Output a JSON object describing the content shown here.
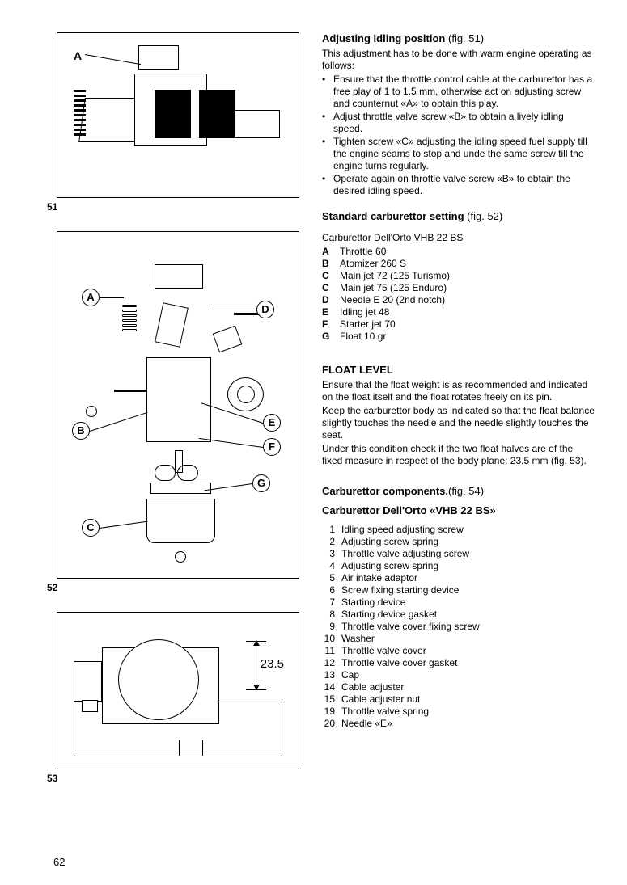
{
  "page_number": "62",
  "figures": {
    "f51": {
      "num": "51",
      "label_A": "A"
    },
    "f52": {
      "num": "52",
      "circles": {
        "A": "A",
        "B": "B",
        "C": "C",
        "D": "D",
        "E": "E",
        "F": "F",
        "G": "G"
      }
    },
    "f53": {
      "num": "53",
      "dimension": "23.5"
    }
  },
  "sections": {
    "s1": {
      "heading": "Adjusting idling position",
      "fig_ref": "(fig. 51)",
      "intro": "This adjustment has to be done with warm engine operating as follows:",
      "bullets": [
        "Ensure that the throttle control cable at the carburettor has a free play of 1 to 1.5 mm, otherwise act on adjusting screw and counternut «A» to obtain this play.",
        "Adjust throttle valve screw «B» to obtain a lively idling speed.",
        "Tighten screw «C» adjusting the idling speed fuel supply till the engine seams to stop and unde the same screw till the engine turns regularly.",
        "Operate again on throttle valve screw «B» to obtain the desired idling speed."
      ]
    },
    "s2": {
      "heading": "Standard carburettor setting",
      "fig_ref": "(fig. 52)",
      "subtitle": "Carburettor Dell'Orto VHB 22 BS",
      "specs": [
        {
          "k": "A",
          "v": "Throttle 60"
        },
        {
          "k": "B",
          "v": "Atomizer 260 S"
        },
        {
          "k": "C",
          "v": "Main jet 72 (125 Turismo)"
        },
        {
          "k": "C",
          "v": "Main jet 75 (125 Enduro)"
        },
        {
          "k": "D",
          "v": "Needle E 20 (2nd notch)"
        },
        {
          "k": "E",
          "v": "Idling jet 48"
        },
        {
          "k": "F",
          "v": "Starter jet 70"
        },
        {
          "k": "G",
          "v": "Float 10 gr"
        }
      ]
    },
    "s3": {
      "heading": "FLOAT LEVEL",
      "paras": [
        "Ensure that the float weight is as recommended and indicated on the float itself and the float rotates freely on its pin.",
        "Keep the carburettor body as indicated so that the float balance slightly touches the needle and the needle slightly touches the seat.",
        "Under this condition check if the two float halves are of the fixed measure in respect of the body plane: 23.5 mm (fig. 53)."
      ]
    },
    "s4": {
      "heading": "Carburettor components.",
      "fig_ref": "(fig. 54)",
      "subheading": "Carburettor Dell'Orto «VHB 22 BS»",
      "items": [
        {
          "n": "1",
          "v": "Idling speed adjusting screw"
        },
        {
          "n": "2",
          "v": "Adjusting screw spring"
        },
        {
          "n": "3",
          "v": "Throttle valve adjusting screw"
        },
        {
          "n": "4",
          "v": "Adjusting screw spring"
        },
        {
          "n": "5",
          "v": "Air intake adaptor"
        },
        {
          "n": "6",
          "v": "Screw fixing starting device"
        },
        {
          "n": "7",
          "v": "Starting device"
        },
        {
          "n": "8",
          "v": "Starting device gasket"
        },
        {
          "n": "9",
          "v": "Throttle valve cover fixing screw"
        },
        {
          "n": "10",
          "v": "Washer"
        },
        {
          "n": "11",
          "v": "Throttle valve cover"
        },
        {
          "n": "12",
          "v": "Throttle valve cover gasket"
        },
        {
          "n": "13",
          "v": "Cap"
        },
        {
          "n": "14",
          "v": "Cable adjuster"
        },
        {
          "n": "15",
          "v": "Cable adjuster nut"
        },
        {
          "n": "19",
          "v": "Throttle valve spring"
        },
        {
          "n": "20",
          "v": "Needle «E»"
        }
      ]
    }
  }
}
